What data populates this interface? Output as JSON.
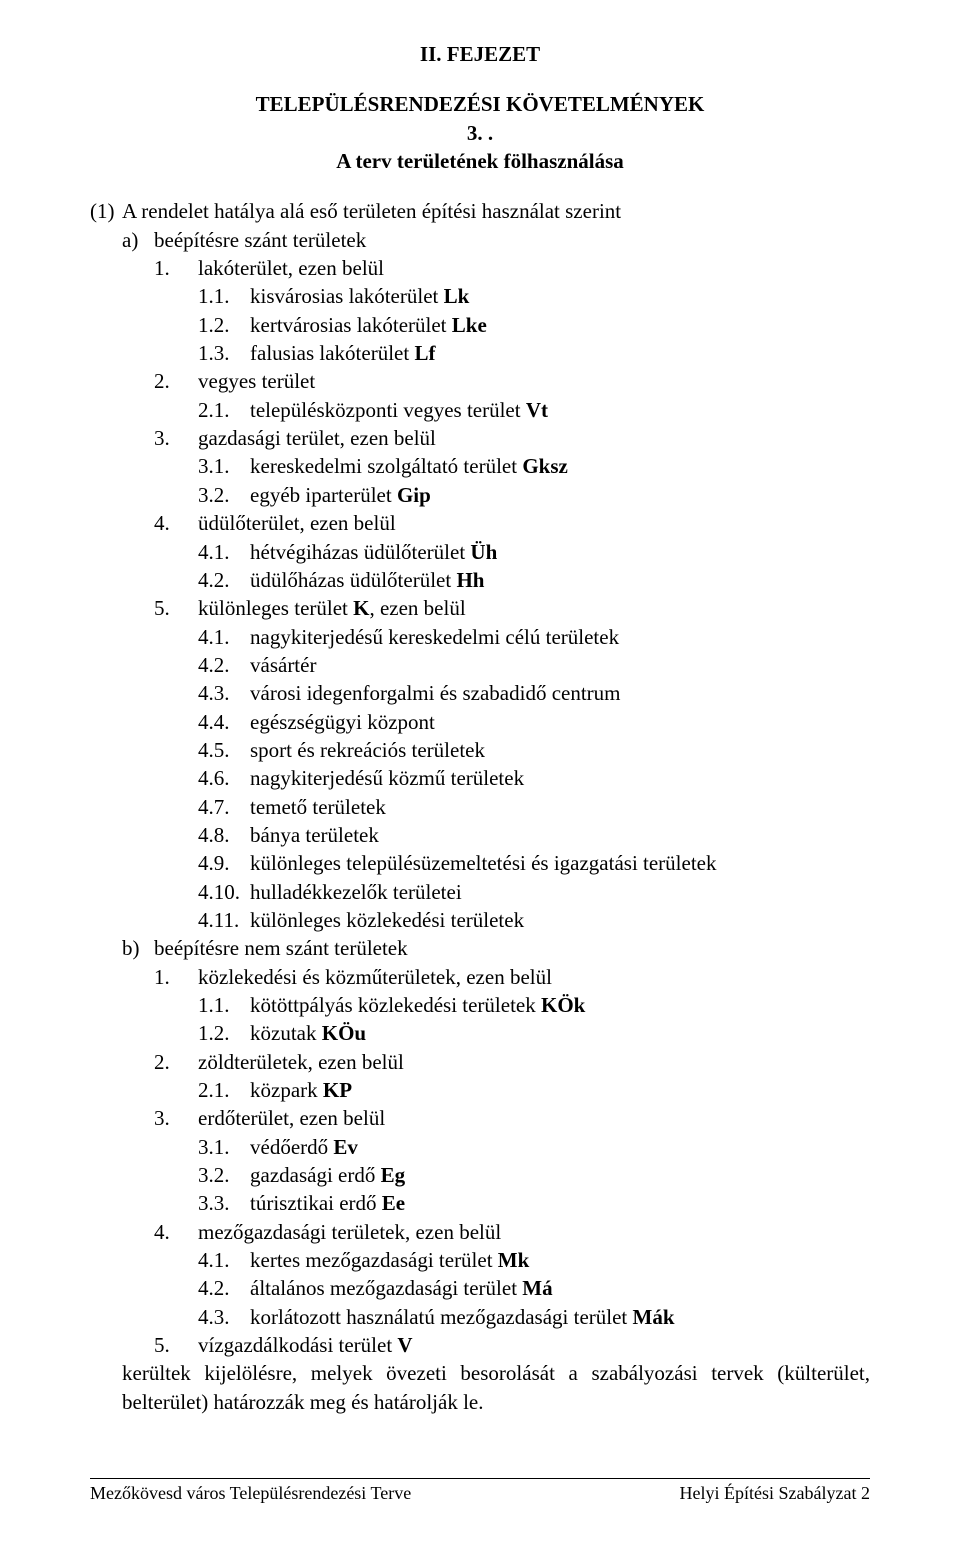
{
  "chapter": "II. FEJEZET",
  "heading1": "TELEPÜLÉSRENDEZÉSI KÖVETELMÉNYEK",
  "heading2": "3. .",
  "heading3": "A terv területének fölhasználása",
  "para1_marker": "(1)",
  "para1_text": "A rendelet hatálya alá eső területen  építési használat szerint",
  "a_marker": "a)",
  "a_text": "beépítésre szánt területek",
  "a1_marker": "1.",
  "a1_text_pre": "lakóterület, ezen belül",
  "a1_1_marker": "1.1.",
  "a1_1_text": "kisvárosias lakóterület ",
  "a1_1_bold": "Lk",
  "a1_2_marker": "1.2.",
  "a1_2_text": "kertvárosias lakóterület ",
  "a1_2_bold": "Lke",
  "a1_3_marker": "1.3.",
  "a1_3_text": "falusias lakóterület ",
  "a1_3_bold": "Lf",
  "a2_marker": "2.",
  "a2_text": "vegyes terület",
  "a2_1_marker": "2.1.",
  "a2_1_text": "településközponti vegyes terület ",
  "a2_1_bold": "Vt",
  "a3_marker": "3.",
  "a3_text": "gazdasági terület, ezen belül",
  "a3_1_marker": "3.1.",
  "a3_1_text": "kereskedelmi szolgáltató terület ",
  "a3_1_bold": "Gksz",
  "a3_2_marker": "3.2.",
  "a3_2_text": "egyéb iparterület ",
  "a3_2_bold": "Gip",
  "a4_marker": "4.",
  "a4_text": "üdülőterület, ezen belül",
  "a4_1_marker": "4.1.",
  "a4_1_text": "hétvégiházas üdülőterület ",
  "a4_1_bold": "Üh",
  "a4_2_marker": "4.2.",
  "a4_2_text": "üdülőházas üdülőterület ",
  "a4_2_bold": "Hh",
  "a5_marker": "5.",
  "a5_text_pre": "különleges terület ",
  "a5_bold": "K",
  "a5_text_post": ", ezen belül",
  "a5_1_marker": "4.1.",
  "a5_1_text": "nagykiterjedésű kereskedelmi célú területek",
  "a5_2_marker": "4.2.",
  "a5_2_text": "vásártér",
  "a5_3_marker": "4.3.",
  "a5_3_text": "városi idegenforgalmi és szabadidő centrum",
  "a5_4_marker": "4.4.",
  "a5_4_text": "egészségügyi központ",
  "a5_5_marker": "4.5.",
  "a5_5_text": "sport és rekreációs területek",
  "a5_6_marker": "4.6.",
  "a5_6_text": "nagykiterjedésű közmű területek",
  "a5_7_marker": "4.7.",
  "a5_7_text": "temető területek",
  "a5_8_marker": "4.8.",
  "a5_8_text": "bánya területek",
  "a5_9_marker": "4.9.",
  "a5_9_text": "különleges településüzemeltetési és igazgatási területek",
  "a5_10_marker": "4.10.",
  "a5_10_text": "hulladékkezelők területei",
  "a5_11_marker": "4.11.",
  "a5_11_text": "különleges közlekedési területek",
  "b_marker": "b)",
  "b_text": "beépítésre nem szánt területek",
  "b1_marker": "1.",
  "b1_text": "közlekedési és közműterületek, ezen belül",
  "b1_1_marker": "1.1.",
  "b1_1_text": "kötöttpályás közlekedési területek ",
  "b1_1_bold": "KÖk",
  "b1_2_marker": "1.2.",
  "b1_2_text": "közutak ",
  "b1_2_bold": "KÖu",
  "b2_marker": "2.",
  "b2_text": "zöldterületek, ezen belül",
  "b2_1_marker": "2.1.",
  "b2_1_text": "közpark ",
  "b2_1_bold": "KP",
  "b3_marker": "3.",
  "b3_text": "erdőterület, ezen belül",
  "b3_1_marker": "3.1.",
  "b3_1_text": "védőerdő ",
  "b3_1_bold": "Ev",
  "b3_2_marker": "3.2.",
  "b3_2_text": "gazdasági erdő ",
  "b3_2_bold": "Eg",
  "b3_3_marker": "3.3.",
  "b3_3_text": "túrisztikai erdő ",
  "b3_3_bold": "Ee",
  "b4_marker": "4.",
  "b4_text": "mezőgazdasági területek, ezen belül",
  "b4_1_marker": "4.1.",
  "b4_1_text": "kertes mezőgazdasági terület ",
  "b4_1_bold": "Mk",
  "b4_2_marker": "4.2.",
  "b4_2_text": "általános mezőgazdasági terület ",
  "b4_2_bold": "Má",
  "b4_3_marker": "4.3.",
  "b4_3_text": "korlátozott használatú mezőgazdasági terület ",
  "b4_3_bold": "Mák",
  "b5_marker": "5.",
  "b5_text_pre": "vízgazdálkodási terület ",
  "b5_bold": "V",
  "closing": "kerültek kijelölésre, melyek övezeti besorolását a szabályozási tervek (külterület, belterület) határozzák meg és határolják le.",
  "footer_left": "Mezőkövesd város Településrendezési Terve",
  "footer_right": "Helyi Építési Szabályzat 2"
}
